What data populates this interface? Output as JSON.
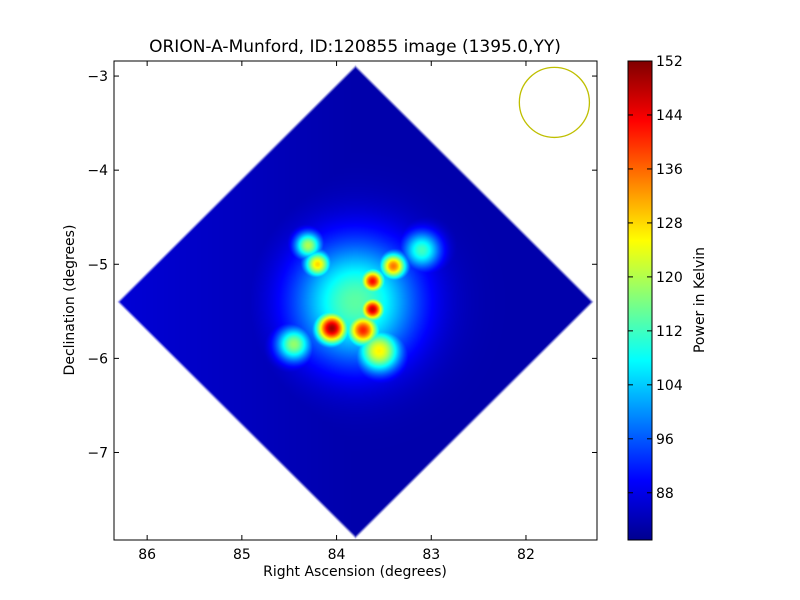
{
  "chart_data": {
    "type": "heatmap",
    "title": "ORION-A-Munford, ID:120855 image (1395.0,YY)",
    "xlabel": "Right Ascension (degrees)",
    "ylabel": "Declination (degrees)",
    "colorbar_label": "Power in Kelvin",
    "xlim": [
      86.35,
      81.25
    ],
    "ylim": [
      -7.93,
      -2.84
    ],
    "x_ticks": [
      86,
      85,
      84,
      83,
      82
    ],
    "x_tick_labels": [
      "86",
      "85",
      "84",
      "83",
      "82"
    ],
    "y_ticks": [
      -3,
      -4,
      -5,
      -6,
      -7
    ],
    "y_tick_labels": [
      "−3",
      "−4",
      "−5",
      "−6",
      "−7"
    ],
    "color_range": [
      81,
      152
    ],
    "colorbar_ticks": [
      152,
      144,
      136,
      128,
      120,
      112,
      104,
      96,
      88
    ],
    "colorbar_tick_labels": [
      "152",
      "144",
      "136",
      "128",
      "120",
      "112",
      "104",
      "96",
      "88"
    ],
    "colormap": "jet",
    "map_footprint": {
      "shape": "diamond",
      "center_ra": 83.8,
      "center_dec": -5.4,
      "half_extent_deg": 2.52,
      "background_level": 84
    },
    "beam_circle": {
      "ra": 81.7,
      "dec": -3.28,
      "radius_deg": 0.37,
      "color": "#bfbf00"
    },
    "hotspots": [
      {
        "ra": 83.8,
        "dec": -5.4,
        "value": 114,
        "sigma_deg": 0.45
      },
      {
        "ra": 84.05,
        "dec": -5.68,
        "value": 150,
        "sigma_deg": 0.12
      },
      {
        "ra": 83.72,
        "dec": -5.7,
        "value": 141,
        "sigma_deg": 0.12
      },
      {
        "ra": 83.62,
        "dec": -5.48,
        "value": 147,
        "sigma_deg": 0.09
      },
      {
        "ra": 83.62,
        "dec": -5.18,
        "value": 143,
        "sigma_deg": 0.09
      },
      {
        "ra": 83.4,
        "dec": -5.02,
        "value": 135,
        "sigma_deg": 0.1
      },
      {
        "ra": 84.2,
        "dec": -5.0,
        "value": 128,
        "sigma_deg": 0.1
      },
      {
        "ra": 84.3,
        "dec": -4.8,
        "value": 120,
        "sigma_deg": 0.1
      },
      {
        "ra": 83.55,
        "dec": -5.92,
        "value": 126,
        "sigma_deg": 0.16
      },
      {
        "ra": 84.45,
        "dec": -5.85,
        "value": 118,
        "sigma_deg": 0.13
      },
      {
        "ra": 83.1,
        "dec": -4.85,
        "value": 112,
        "sigma_deg": 0.14
      }
    ]
  }
}
